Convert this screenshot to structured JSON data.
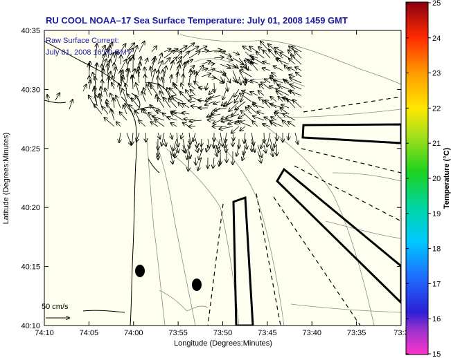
{
  "title": "RU COOL  NOAA–17  Sea Surface Temperature:  July 01, 2008 1459 GMT",
  "legend_text": {
    "line1": "Raw Surface Current:",
    "line2": "July 01, 2008 16:00 GMT"
  },
  "scale_label": "50 cm/s",
  "axes": {
    "xlabel": "Longitude (Degrees:Minutes)",
    "ylabel": "Latitude (Degrees:Minutes)",
    "xticks": [
      "74:10",
      "74:05",
      "74:00",
      "73:55",
      "73:50",
      "73:45",
      "73:40",
      "73:35",
      "73:3"
    ],
    "yticks": [
      "40:35",
      "40:30",
      "40:25",
      "40:20",
      "40:15",
      "40:10"
    ]
  },
  "colorbar": {
    "label": "Temperature (°C)",
    "ticks": [
      "25",
      "24",
      "23",
      "22",
      "21",
      "20",
      "19",
      "18",
      "17",
      "16",
      "15"
    ],
    "min": 15,
    "max": 25
  },
  "colors": {
    "title": "#1a1aa6",
    "land": "#fffff0",
    "coast": "#000000"
  }
}
